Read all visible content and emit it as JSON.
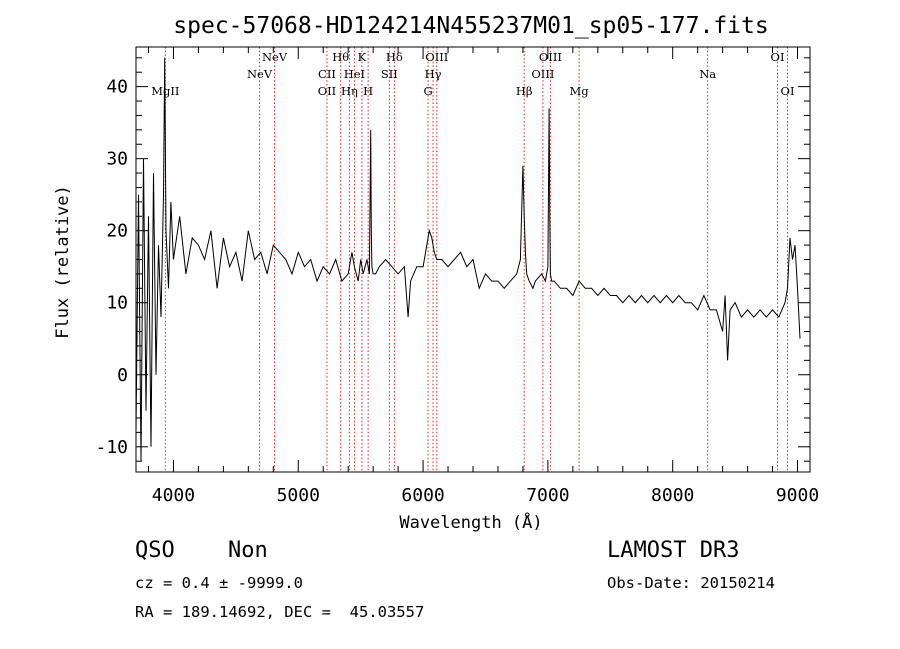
{
  "chart_data": {
    "type": "line",
    "title": "spec-57068-HD124214N455237M01_sp05-177.fits",
    "xlabel": "Wavelength (Å)",
    "ylabel": "Flux (relative)",
    "xlim": [
      3700,
      9100
    ],
    "ylim": [
      -13.5,
      45.5
    ],
    "xticks": [
      4000,
      5000,
      6000,
      7000,
      8000,
      9000
    ],
    "yticks": [
      -10,
      0,
      10,
      20,
      30,
      40
    ],
    "spectrum": {
      "name": "flux",
      "x": [
        3700,
        3720,
        3740,
        3760,
        3780,
        3800,
        3820,
        3840,
        3860,
        3880,
        3900,
        3920,
        3930,
        3940,
        3960,
        3980,
        4000,
        4050,
        4100,
        4150,
        4200,
        4250,
        4300,
        4350,
        4400,
        4450,
        4500,
        4550,
        4600,
        4650,
        4700,
        4750,
        4800,
        4850,
        4900,
        4950,
        5000,
        5050,
        5100,
        5150,
        5200,
        5250,
        5300,
        5350,
        5400,
        5430,
        5450,
        5480,
        5500,
        5520,
        5550,
        5570,
        5580,
        5585,
        5590,
        5600,
        5620,
        5650,
        5700,
        5750,
        5800,
        5850,
        5880,
        5900,
        5950,
        6000,
        6030,
        6050,
        6070,
        6090,
        6110,
        6150,
        6200,
        6250,
        6300,
        6350,
        6400,
        6450,
        6500,
        6550,
        6600,
        6650,
        6700,
        6750,
        6780,
        6800,
        6810,
        6820,
        6830,
        6850,
        6880,
        6900,
        6950,
        6980,
        7000,
        7010,
        7015,
        7020,
        7030,
        7050,
        7100,
        7150,
        7200,
        7250,
        7300,
        7350,
        7400,
        7450,
        7500,
        7550,
        7600,
        7650,
        7700,
        7750,
        7800,
        7850,
        7900,
        7950,
        8000,
        8050,
        8100,
        8150,
        8200,
        8250,
        8300,
        8350,
        8400,
        8420,
        8440,
        8460,
        8500,
        8550,
        8600,
        8650,
        8700,
        8750,
        8800,
        8850,
        8900,
        8920,
        8940,
        8960,
        8980,
        9000,
        9020
      ],
      "y": [
        -8,
        25,
        -12,
        30,
        -5,
        22,
        -10,
        28,
        0,
        18,
        8,
        25,
        44,
        20,
        12,
        24,
        16,
        22,
        14,
        19,
        18,
        16,
        20,
        12,
        19,
        15,
        17,
        13,
        20,
        16,
        17,
        14,
        18,
        17,
        16,
        14,
        17,
        15,
        16,
        13,
        15,
        14,
        16,
        13,
        14,
        17,
        15,
        13,
        16,
        14,
        16,
        14,
        34,
        20,
        15,
        14,
        14,
        15,
        16,
        15,
        14,
        15,
        8,
        13,
        15,
        15,
        18,
        20,
        19,
        17,
        16,
        16,
        15,
        16,
        17,
        15,
        16,
        12,
        14,
        13,
        13,
        12,
        13,
        14,
        16,
        29,
        22,
        17,
        14,
        13,
        12,
        13,
        14,
        13,
        15,
        37,
        22,
        14,
        13,
        13,
        12,
        12,
        11,
        13,
        12,
        12,
        11,
        12,
        11,
        11,
        10,
        11,
        10,
        11,
        10,
        11,
        10,
        11,
        10,
        11,
        10,
        10,
        9,
        11,
        9,
        9,
        6,
        11,
        2,
        9,
        10,
        8,
        9,
        8,
        9,
        8,
        9,
        8,
        10,
        12,
        19,
        16,
        18,
        12,
        5
      ]
    },
    "reference_lines": [
      {
        "label": "MgII",
        "wavelength": 3935,
        "row": 3
      },
      {
        "label": "NeV",
        "wavelength": 4690,
        "row": 2
      },
      {
        "label": "NeV",
        "wavelength": 4810,
        "row": 1
      },
      {
        "label": "OII",
        "wavelength": 5230,
        "row": 3
      },
      {
        "label": "CII",
        "wavelength": 5230,
        "row": 2
      },
      {
        "label": "Hθ",
        "wavelength": 5340,
        "row": 1
      },
      {
        "label": "Hη",
        "wavelength": 5410,
        "row": 3
      },
      {
        "label": "HeI",
        "wavelength": 5450,
        "row": 2
      },
      {
        "label": "K",
        "wavelength": 5510,
        "row": 1
      },
      {
        "label": "H",
        "wavelength": 5560,
        "row": 3
      },
      {
        "label": "SII",
        "wavelength": 5730,
        "row": 2
      },
      {
        "label": "Hδ",
        "wavelength": 5770,
        "row": 1
      },
      {
        "label": "G",
        "wavelength": 6040,
        "row": 3
      },
      {
        "label": "Hγ",
        "wavelength": 6080,
        "row": 2
      },
      {
        "label": "OIII",
        "wavelength": 6110,
        "row": 1
      },
      {
        "label": "Hβ",
        "wavelength": 6810,
        "row": 3
      },
      {
        "label": "OIII",
        "wavelength": 6960,
        "row": 2
      },
      {
        "label": "OIII",
        "wavelength": 7020,
        "row": 1
      },
      {
        "label": "Mg",
        "wavelength": 7250,
        "row": 3
      },
      {
        "label": "Na",
        "wavelength": 8280,
        "row": 2
      },
      {
        "label": "OI",
        "wavelength": 8840,
        "row": 1
      },
      {
        "label": "OI",
        "wavelength": 8920,
        "row": 3
      }
    ],
    "colors": {
      "spectrum": "#000000",
      "reference_line": "#cc2a1f",
      "axes": "#000000"
    }
  },
  "info": {
    "class": "QSO",
    "subclass": "Non",
    "survey": "LAMOST DR3",
    "cz": "cz = 0.4 ± -9999.0",
    "obs_date": "Obs-Date: 20150214",
    "radec": "RA = 189.14692, DEC =  45.03557"
  }
}
